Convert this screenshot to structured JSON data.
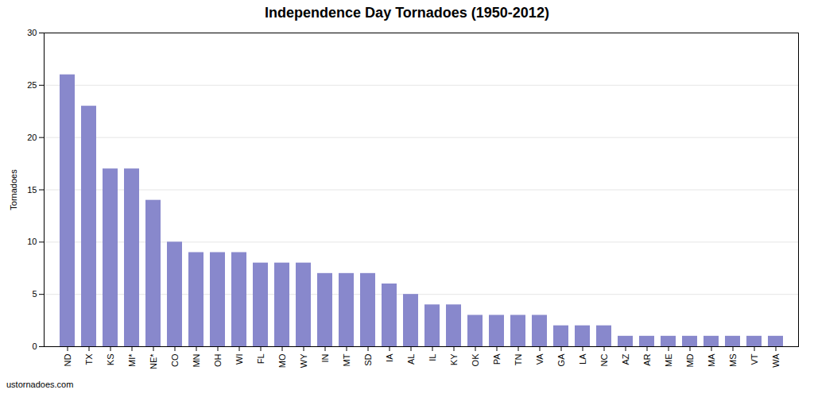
{
  "chart_data": {
    "type": "bar",
    "title": "Independence Day Tornadoes (1950-2012)",
    "ylabel": "Tornadoes",
    "categories": [
      "ND",
      "TX",
      "KS",
      "MI*",
      "NE*",
      "CO",
      "MN",
      "OH",
      "WI",
      "FL",
      "MO",
      "WY",
      "IN",
      "MT",
      "SD",
      "IA",
      "AL",
      "IL",
      "KY",
      "OK",
      "PA",
      "TN",
      "VA",
      "GA",
      "LA",
      "NC",
      "AZ",
      "AR",
      "ME",
      "MD",
      "MA",
      "MS",
      "VT",
      "WA"
    ],
    "values": [
      26,
      23,
      17,
      17,
      14,
      10,
      9,
      9,
      9,
      8,
      8,
      8,
      7,
      7,
      7,
      6,
      5,
      4,
      4,
      3,
      3,
      3,
      3,
      2,
      2,
      2,
      1,
      1,
      1,
      1,
      1,
      1,
      1,
      1
    ],
    "color": "#8888cc",
    "ylim": [
      0,
      30
    ],
    "yticks": [
      0,
      5,
      10,
      15,
      20,
      25,
      30
    ],
    "grid": true,
    "caption": "ustornadoes.com"
  }
}
